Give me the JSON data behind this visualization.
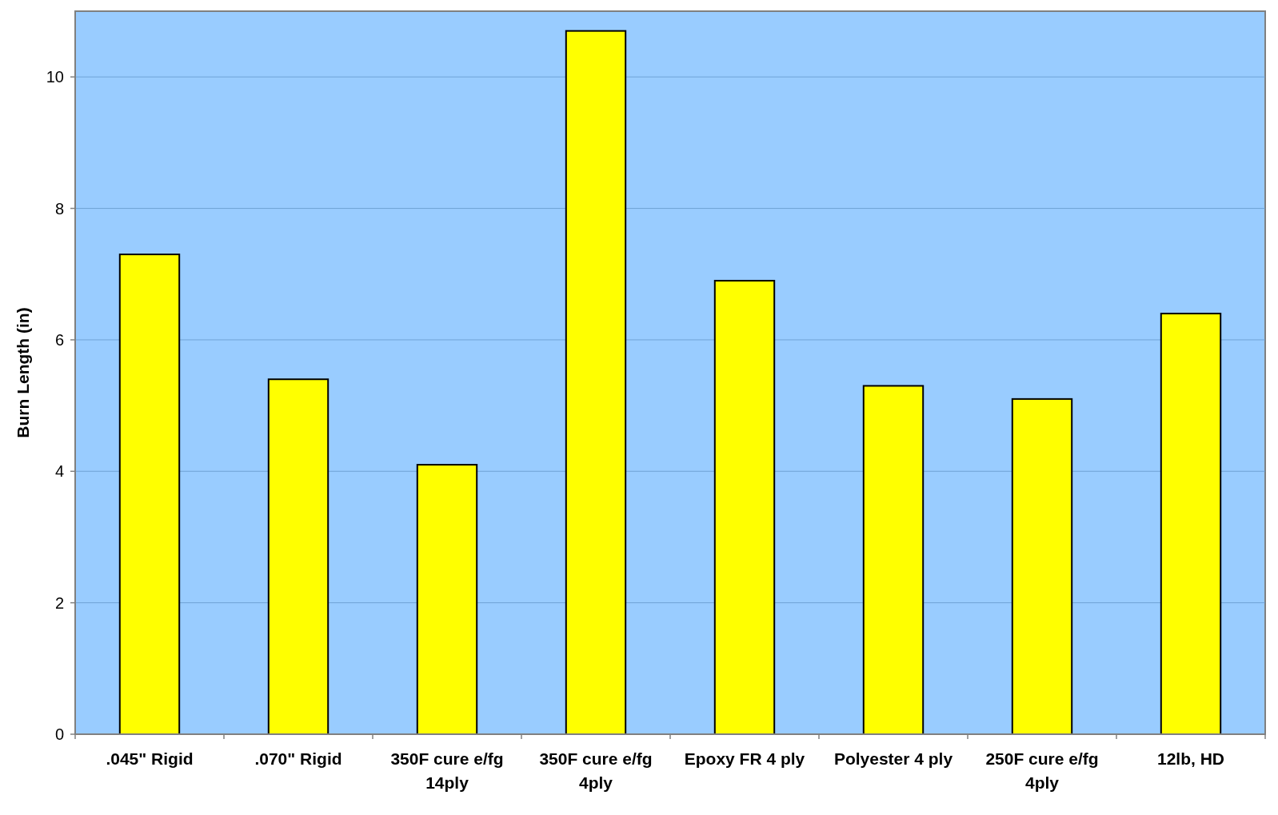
{
  "chart_data": {
    "type": "bar",
    "ylabel": "Burn Length (in)",
    "categories": [
      ".045\" Rigid",
      ".070\" Rigid",
      "350F cure e/fg 14ply",
      "350F cure e/fg 4ply",
      "Epoxy FR 4 ply",
      "Polyester 4 ply",
      "250F cure e/fg 4ply",
      "12lb, HD"
    ],
    "values": [
      7.3,
      5.4,
      4.1,
      10.7,
      6.9,
      5.3,
      5.1,
      6.4
    ],
    "color": "#ffff00",
    "ylim": [
      0,
      11
    ],
    "yticks": [
      0,
      2,
      4,
      6,
      8,
      10
    ],
    "grid": "y"
  }
}
